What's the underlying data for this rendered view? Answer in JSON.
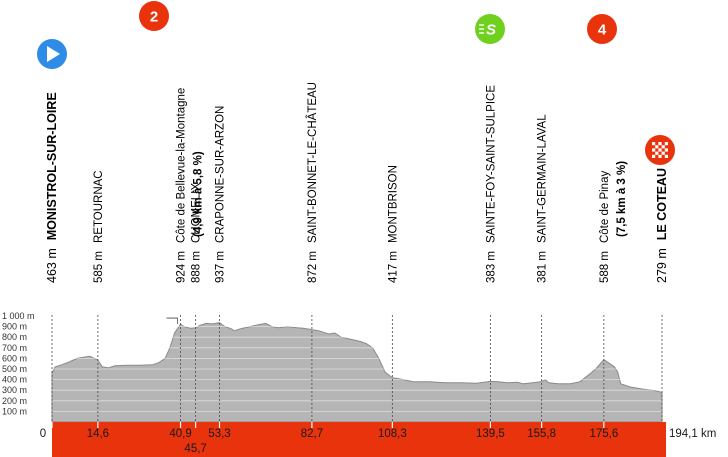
{
  "colors": {
    "profile_fill": "#b5b5b5",
    "profile_stroke": "#8a8a8a",
    "band": "#e8330d",
    "climb_badge": "#e8330d",
    "sprint_badge": "#6fd11e",
    "start_badge": "#2e8be6",
    "finish_badge": "#e8330d"
  },
  "chart_data": {
    "type": "area",
    "title": "",
    "xlabel": "",
    "ylabel": "",
    "x_unit": "km",
    "total_distance_label": "194,1 km",
    "xlim": [
      0,
      194.1
    ],
    "ylim": [
      0,
      1100
    ],
    "y_ticks": [
      "100 m",
      "200 m",
      "300 m",
      "400 m",
      "500 m",
      "600 m",
      "700 m",
      "800 m",
      "900 m",
      "1 000 m"
    ],
    "x_ticks": [
      {
        "km": 0,
        "label": "0"
      },
      {
        "km": 14.6,
        "label": "14,6"
      },
      {
        "km": 40.9,
        "label": "40,9"
      },
      {
        "km": 45.7,
        "label": "45,7"
      },
      {
        "km": 53.3,
        "label": "53,3"
      },
      {
        "km": 82.7,
        "label": "82,7"
      },
      {
        "km": 108.3,
        "label": "108,3"
      },
      {
        "km": 139.5,
        "label": "139,5"
      },
      {
        "km": 155.8,
        "label": "155,8"
      },
      {
        "km": 175.6,
        "label": "175,6"
      }
    ],
    "profile": [
      [
        0,
        463
      ],
      [
        1,
        520
      ],
      [
        3,
        540
      ],
      [
        5,
        560
      ],
      [
        8,
        600
      ],
      [
        10,
        610
      ],
      [
        12,
        620
      ],
      [
        14.6,
        585
      ],
      [
        16,
        520
      ],
      [
        18,
        510
      ],
      [
        20,
        530
      ],
      [
        24,
        535
      ],
      [
        28,
        535
      ],
      [
        32,
        540
      ],
      [
        34,
        560
      ],
      [
        36,
        600
      ],
      [
        37.5,
        700
      ],
      [
        39,
        840
      ],
      [
        40.9,
        924
      ],
      [
        42,
        900
      ],
      [
        44,
        885
      ],
      [
        45.7,
        888
      ],
      [
        47,
        910
      ],
      [
        49,
        930
      ],
      [
        51,
        925
      ],
      [
        53.3,
        937
      ],
      [
        55,
        900
      ],
      [
        57,
        880
      ],
      [
        58,
        860
      ],
      [
        60,
        880
      ],
      [
        63,
        900
      ],
      [
        66,
        920
      ],
      [
        68,
        930
      ],
      [
        70,
        900
      ],
      [
        72,
        890
      ],
      [
        75,
        900
      ],
      [
        78,
        890
      ],
      [
        80,
        885
      ],
      [
        82.7,
        872
      ],
      [
        85,
        860
      ],
      [
        88,
        830
      ],
      [
        90,
        840
      ],
      [
        92,
        800
      ],
      [
        95,
        780
      ],
      [
        98,
        760
      ],
      [
        100,
        740
      ],
      [
        102,
        700
      ],
      [
        104,
        600
      ],
      [
        106,
        470
      ],
      [
        108.3,
        417
      ],
      [
        110,
        410
      ],
      [
        115,
        380
      ],
      [
        120,
        380
      ],
      [
        125,
        370
      ],
      [
        130,
        370
      ],
      [
        135,
        365
      ],
      [
        139.5,
        383
      ],
      [
        142,
        380
      ],
      [
        145,
        370
      ],
      [
        148,
        375
      ],
      [
        150,
        360
      ],
      [
        153,
        370
      ],
      [
        155.8,
        381
      ],
      [
        157,
        400
      ],
      [
        158,
        370
      ],
      [
        161,
        360
      ],
      [
        165,
        360
      ],
      [
        168,
        380
      ],
      [
        171,
        450
      ],
      [
        173,
        500
      ],
      [
        175.6,
        588
      ],
      [
        177,
        560
      ],
      [
        179,
        520
      ],
      [
        180,
        470
      ],
      [
        181,
        360
      ],
      [
        184,
        330
      ],
      [
        188,
        310
      ],
      [
        192,
        295
      ],
      [
        194.1,
        279
      ]
    ],
    "waypoints": [
      {
        "km": 0,
        "altitude": "463 m",
        "name": "MONISTROL-SUR-LOIRE",
        "bold": true
      },
      {
        "km": 14.6,
        "altitude": "585 m",
        "name": "RETOURNAC"
      },
      {
        "km": 40.9,
        "altitude": "924 m",
        "name": "Côte de Bellevue-la-Montagne",
        "detail": "(4,9 km à 5,8 %)"
      },
      {
        "km": 45.7,
        "altitude": "888 m",
        "name": "CHOMELIX"
      },
      {
        "km": 53.3,
        "altitude": "937 m",
        "name": "CRAPONNE-SUR-ARZON"
      },
      {
        "km": 82.7,
        "altitude": "872 m",
        "name": "SAINT-BONNET-LE-CHÂTEAU"
      },
      {
        "km": 108.3,
        "altitude": "417 m",
        "name": "MONTBRISON"
      },
      {
        "km": 139.5,
        "altitude": "383 m",
        "name": "SAINTE-FOY-SAINT-SULPICE"
      },
      {
        "km": 155.8,
        "altitude": "381 m",
        "name": "SAINT-GERMAIN-LAVAL"
      },
      {
        "km": 175.6,
        "altitude": "588 m",
        "name": "Côte de Pinay",
        "detail": "(7,5 km à 3 %)"
      },
      {
        "km": 194.1,
        "altitude": "279 m",
        "name": "LE COTEAU",
        "bold": true
      }
    ],
    "badges": [
      {
        "km": 0,
        "kind": "start",
        "icon": "play-icon"
      },
      {
        "km": 40.9,
        "kind": "climb",
        "text": "2"
      },
      {
        "km": 139.5,
        "kind": "sprint",
        "text": "S"
      },
      {
        "km": 175.6,
        "kind": "climb",
        "text": "4"
      },
      {
        "km": 194.1,
        "kind": "finish",
        "icon": "checkered-flag-icon"
      }
    ]
  }
}
